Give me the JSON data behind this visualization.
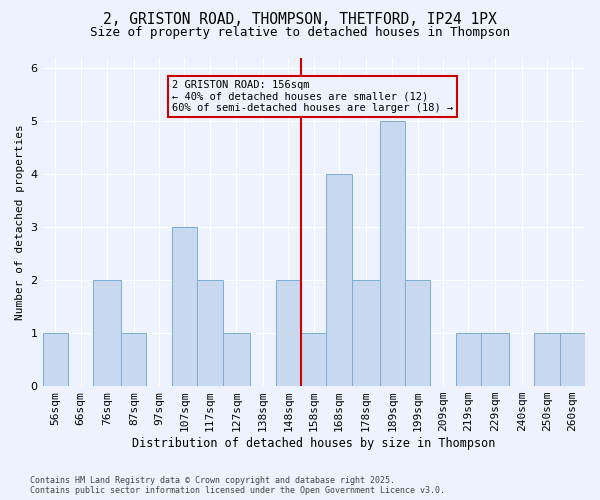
{
  "title_line1": "2, GRISTON ROAD, THOMPSON, THETFORD, IP24 1PX",
  "title_line2": "Size of property relative to detached houses in Thompson",
  "xlabel": "Distribution of detached houses by size in Thompson",
  "ylabel": "Number of detached properties",
  "footnote_line1": "Contains HM Land Registry data © Crown copyright and database right 2025.",
  "footnote_line2": "Contains public sector information licensed under the Open Government Licence v3.0.",
  "annotation_line1": "2 GRISTON ROAD: 156sqm",
  "annotation_line2": "← 40% of detached houses are smaller (12)",
  "annotation_line3": "60% of semi-detached houses are larger (18) →",
  "vline_x_bin_index": 10,
  "bins": [
    56,
    66,
    76,
    87,
    97,
    107,
    117,
    127,
    138,
    148,
    158,
    168,
    178,
    189,
    199,
    209,
    219,
    229,
    240,
    250,
    260
  ],
  "bar_labels": [
    "56sqm",
    "66sqm",
    "76sqm",
    "87sqm",
    "97sqm",
    "107sqm",
    "117sqm",
    "127sqm",
    "138sqm",
    "148sqm",
    "158sqm",
    "168sqm",
    "178sqm",
    "189sqm",
    "199sqm",
    "209sqm",
    "219sqm",
    "229sqm",
    "240sqm",
    "250sqm",
    "260sqm"
  ],
  "values": [
    1,
    0,
    2,
    1,
    0,
    3,
    2,
    1,
    0,
    2,
    1,
    4,
    2,
    5,
    2,
    0,
    1,
    1,
    0,
    1,
    1
  ],
  "bar_color": "#c8d8ee",
  "bar_edge_color": "#7aaed4",
  "vline_color": "#cc0000",
  "annotation_box_edge_color": "#cc0000",
  "background_color": "#eef2fc",
  "grid_color": "#ffffff",
  "ylim": [
    0,
    6.2
  ],
  "yticks": [
    0,
    1,
    2,
    3,
    4,
    5,
    6
  ],
  "title1_fontsize": 10.5,
  "title2_fontsize": 9,
  "ylabel_fontsize": 8,
  "xlabel_fontsize": 8.5,
  "tick_fontsize": 8,
  "annot_fontsize": 7.5,
  "footnote_fontsize": 6
}
